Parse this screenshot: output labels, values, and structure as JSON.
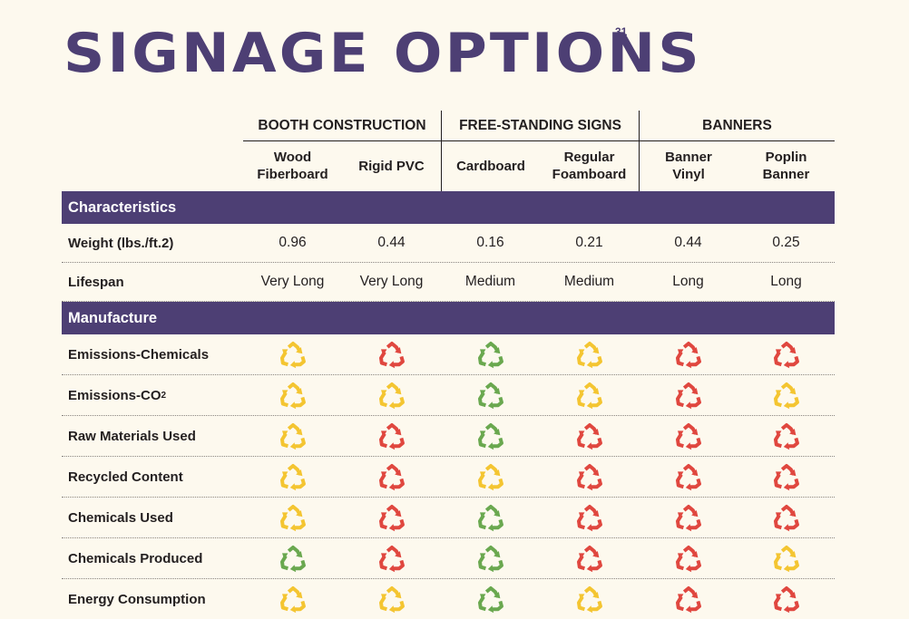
{
  "title": "SIGNAGE OPTIONS",
  "page_number": "31",
  "groups": [
    {
      "label": "BOOTH CONSTRUCTION"
    },
    {
      "label": "FREE-STANDING SIGNS"
    },
    {
      "label": "BANNERS"
    }
  ],
  "columns": [
    "Wood\nFiberboard",
    "Rigid PVC",
    "Cardboard",
    "Regular\nFoamboard",
    "Banner\nVinyl",
    "Poplin\nBanner"
  ],
  "characteristics": {
    "label": "Characteristics",
    "rows": [
      {
        "label": "Weight (lbs./ft.2)",
        "values": [
          "0.96",
          "0.44",
          "0.16",
          "0.21",
          "0.44",
          "0.25"
        ]
      },
      {
        "label": "Lifespan",
        "values": [
          "Very Long",
          "Very Long",
          "Medium",
          "Medium",
          "Long",
          "Long"
        ]
      }
    ]
  },
  "manufacture": {
    "label": "Manufacture",
    "rows": [
      {
        "label": "Emissions-Chemicals",
        "ratings": [
          "yellow",
          "red",
          "green",
          "yellow",
          "red",
          "red"
        ]
      },
      {
        "label": "Emissions-CO",
        "sub": "2",
        "ratings": [
          "yellow",
          "yellow",
          "green",
          "yellow",
          "red",
          "yellow"
        ]
      },
      {
        "label": "Raw Materials Used",
        "ratings": [
          "yellow",
          "red",
          "green",
          "red",
          "red",
          "red"
        ]
      },
      {
        "label": "Recycled Content",
        "ratings": [
          "yellow",
          "red",
          "yellow",
          "red",
          "red",
          "red"
        ]
      },
      {
        "label": "Chemicals Used",
        "ratings": [
          "yellow",
          "red",
          "green",
          "red",
          "red",
          "red"
        ]
      },
      {
        "label": "Chemicals Produced",
        "ratings": [
          "green",
          "red",
          "green",
          "red",
          "red",
          "yellow"
        ]
      },
      {
        "label": "Energy Consumption",
        "ratings": [
          "yellow",
          "yellow",
          "green",
          "yellow",
          "red",
          "red"
        ]
      }
    ]
  },
  "icon": "recycle-icon",
  "colors": {
    "purple": "#4d3f74",
    "yellow": "#f4c531",
    "red": "#e0473f",
    "green": "#6aa84f",
    "background": "#fdf9ee"
  }
}
